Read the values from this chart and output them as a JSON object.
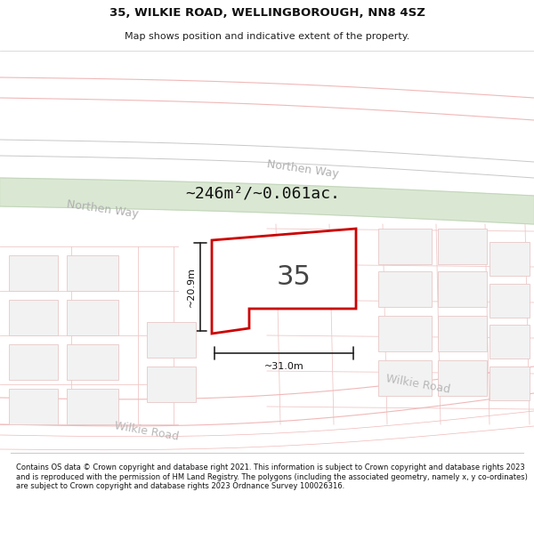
{
  "title_line1": "35, WILKIE ROAD, WELLINGBOROUGH, NN8 4SZ",
  "title_line2": "Map shows position and indicative extent of the property.",
  "area_text": "~246m²/~0.061ac.",
  "house_number": "35",
  "dim_height": "~20.9m",
  "dim_width": "~31.0m",
  "road_label_northen_way_1": "Northen Way",
  "road_label_northen_way_2": "Northen Way",
  "road_label_wilkie_1": "Wilkie Road",
  "road_label_wilkie_2": "Wilkie Road",
  "footer_text": "Contains OS data © Crown copyright and database right 2021. This information is subject to Crown copyright and database rights 2023 and is reproduced with the permission of HM Land Registry. The polygons (including the associated geometry, namely x, y co-ordinates) are subject to Crown copyright and database rights 2023 Ordnance Survey 100026316.",
  "bg_color": "#f8f8f8",
  "road_pink": "#f5c8c8",
  "road_pink_line": "#e8b0b0",
  "road_gray_line": "#c8c8c8",
  "northen_way_fill": "#d4e4cc",
  "northen_way_line": "#c0d4b8",
  "plot_outline_color": "#cc0000",
  "plot_fill_color": "#ffffff",
  "dim_line_color": "#222222",
  "building_fill": "#f0f0f0",
  "building_stroke": "#e0c8c8",
  "grid_line_color": "#f0d8d8",
  "footer_line_color": "#cccccc"
}
